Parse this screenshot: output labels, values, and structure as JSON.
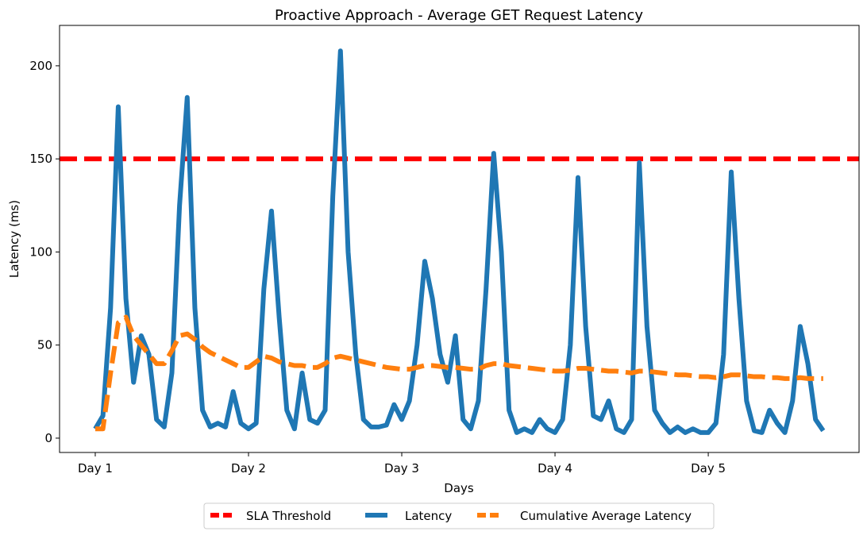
{
  "chart_data": {
    "type": "line",
    "title": "Proactive Approach - Average GET Request Latency",
    "x_label": "Days",
    "y_label": "Latency (ms)",
    "xlim": [
      0.767,
      5.984
    ],
    "ylim": [
      -7.7,
      221.7
    ],
    "xticks": [
      {
        "value": 1,
        "label": "Day 1"
      },
      {
        "value": 2,
        "label": "Day 2"
      },
      {
        "value": 3,
        "label": "Day 3"
      },
      {
        "value": 4,
        "label": "Day 4"
      },
      {
        "value": 5,
        "label": "Day 5"
      }
    ],
    "yticks": [
      0,
      50,
      100,
      150,
      200
    ],
    "legend": "lower center outside",
    "threshold": {
      "name": "SLA Threshold",
      "value": 150,
      "color": "#ff0000",
      "linestyle": "dashed"
    },
    "x": [
      1.0,
      1.05,
      1.1,
      1.15,
      1.2,
      1.25,
      1.3,
      1.35,
      1.4,
      1.45,
      1.5,
      1.55,
      1.6,
      1.65,
      1.7,
      1.75,
      1.8,
      1.85,
      1.9,
      1.95,
      2.0,
      2.05,
      2.1,
      2.15,
      2.2,
      2.25,
      2.3,
      2.35,
      2.4,
      2.45,
      2.5,
      2.55,
      2.6,
      2.65,
      2.7,
      2.75,
      2.8,
      2.85,
      2.9,
      2.95,
      3.0,
      3.05,
      3.1,
      3.15,
      3.2,
      3.25,
      3.3,
      3.35,
      3.4,
      3.45,
      3.5,
      3.55,
      3.6,
      3.65,
      3.7,
      3.75,
      3.8,
      3.85,
      3.9,
      3.95,
      4.0,
      4.05,
      4.1,
      4.15,
      4.2,
      4.25,
      4.3,
      4.35,
      4.4,
      4.45,
      4.5,
      4.55,
      4.6,
      4.65,
      4.7,
      4.75,
      4.8,
      4.85,
      4.9,
      4.95,
      5.0,
      5.05,
      5.1,
      5.15,
      5.2,
      5.25,
      5.3,
      5.35,
      5.4,
      5.45,
      5.5,
      5.55,
      5.6,
      5.65,
      5.7,
      5.75
    ],
    "series": [
      {
        "name": "Latency",
        "color": "#1f77b4",
        "linestyle": "solid",
        "values": [
          5,
          12,
          70,
          178,
          75,
          30,
          55,
          45,
          10,
          6,
          35,
          125,
          183,
          70,
          15,
          6,
          8,
          6,
          25,
          8,
          5,
          8,
          80,
          122,
          65,
          15,
          5,
          35,
          10,
          8,
          15,
          130,
          208,
          100,
          45,
          10,
          6,
          6,
          7,
          18,
          10,
          20,
          50,
          95,
          75,
          45,
          30,
          55,
          10,
          5,
          20,
          80,
          153,
          100,
          15,
          3,
          5,
          3,
          10,
          5,
          3,
          10,
          50,
          140,
          60,
          12,
          10,
          20,
          5,
          3,
          10,
          148,
          60,
          15,
          8,
          3,
          6,
          3,
          5,
          3,
          3,
          8,
          45,
          143,
          75,
          20,
          4,
          3,
          15,
          8,
          3,
          20,
          60,
          40,
          10,
          4
        ]
      },
      {
        "name": "Cumulative Average Latency",
        "color": "#ff7f0e",
        "linestyle": "dashed",
        "values": [
          5,
          5,
          35,
          62,
          65,
          55,
          50,
          45,
          40,
          40,
          47,
          55,
          56,
          53,
          49,
          46,
          44,
          42,
          40,
          38,
          38,
          41,
          44,
          43,
          41,
          40,
          39,
          39,
          38,
          38,
          40,
          43,
          44,
          43,
          42,
          41,
          40,
          39,
          38,
          37.5,
          37,
          37,
          38,
          39,
          39,
          38.5,
          38,
          38,
          37.5,
          37,
          37,
          39,
          40,
          40,
          39,
          38.5,
          38,
          37.5,
          37,
          36.5,
          36,
          36,
          36.5,
          37.5,
          37.5,
          37,
          36.5,
          36,
          36,
          35.5,
          35,
          36,
          36,
          35.5,
          35,
          34.5,
          34,
          34,
          33.5,
          33,
          33,
          32.5,
          33,
          34,
          34,
          33.5,
          33,
          33,
          32.5,
          32.5,
          32,
          32,
          32.5,
          32,
          32,
          32
        ]
      }
    ]
  }
}
